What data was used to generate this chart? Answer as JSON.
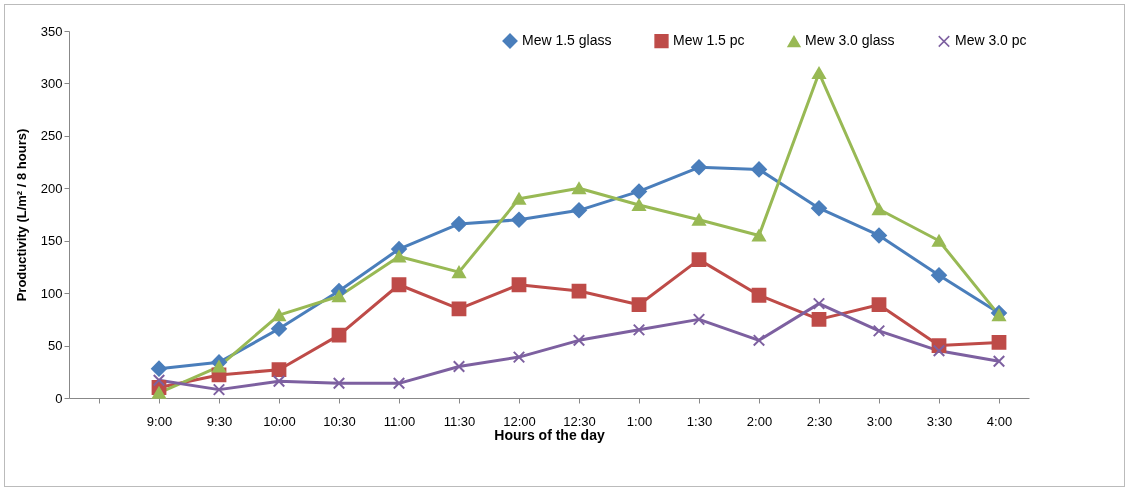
{
  "chart_data": {
    "type": "line",
    "xlabel": "Hours of the day",
    "ylabel": "Productivity  (L/m² / 8 hours)",
    "categories": [
      null,
      "9:00",
      "9:30",
      "10:00",
      "10:30",
      "11:00",
      "11:30",
      "12:00",
      "12:30",
      "1:00",
      "1:30",
      "2:00",
      "2:30",
      "3:00",
      "3:30",
      "4:00"
    ],
    "series": [
      {
        "name": "Mew 1.5 glass",
        "color": "#4a7ebb",
        "marker": "diamond",
        "values": [
          null,
          28,
          34,
          66,
          102,
          142,
          166,
          170,
          179,
          197,
          220,
          218,
          181,
          155,
          117,
          81
        ]
      },
      {
        "name": "Mew 1.5 pc",
        "color": "#be4b48",
        "marker": "square",
        "values": [
          null,
          10,
          22,
          27,
          60,
          108,
          85,
          108,
          102,
          89,
          132,
          98,
          75,
          89,
          50,
          53
        ]
      },
      {
        "name": "Mew 3.0 glass",
        "color": "#98b954",
        "marker": "triangle",
        "values": [
          null,
          5,
          30,
          79,
          97,
          135,
          120,
          190,
          200,
          184,
          170,
          155,
          310,
          180,
          150,
          79
        ]
      },
      {
        "name": "Mew 3.0 pc",
        "color": "#7d60a0",
        "marker": "cross",
        "values": [
          null,
          17,
          8,
          16,
          14,
          14,
          30,
          39,
          55,
          65,
          75,
          55,
          90,
          64,
          45,
          35
        ]
      }
    ],
    "ylim": [
      0,
      350
    ],
    "yticks": [
      0,
      50,
      100,
      150,
      200,
      250,
      300,
      350
    ],
    "grid": false,
    "legend": "top right"
  }
}
